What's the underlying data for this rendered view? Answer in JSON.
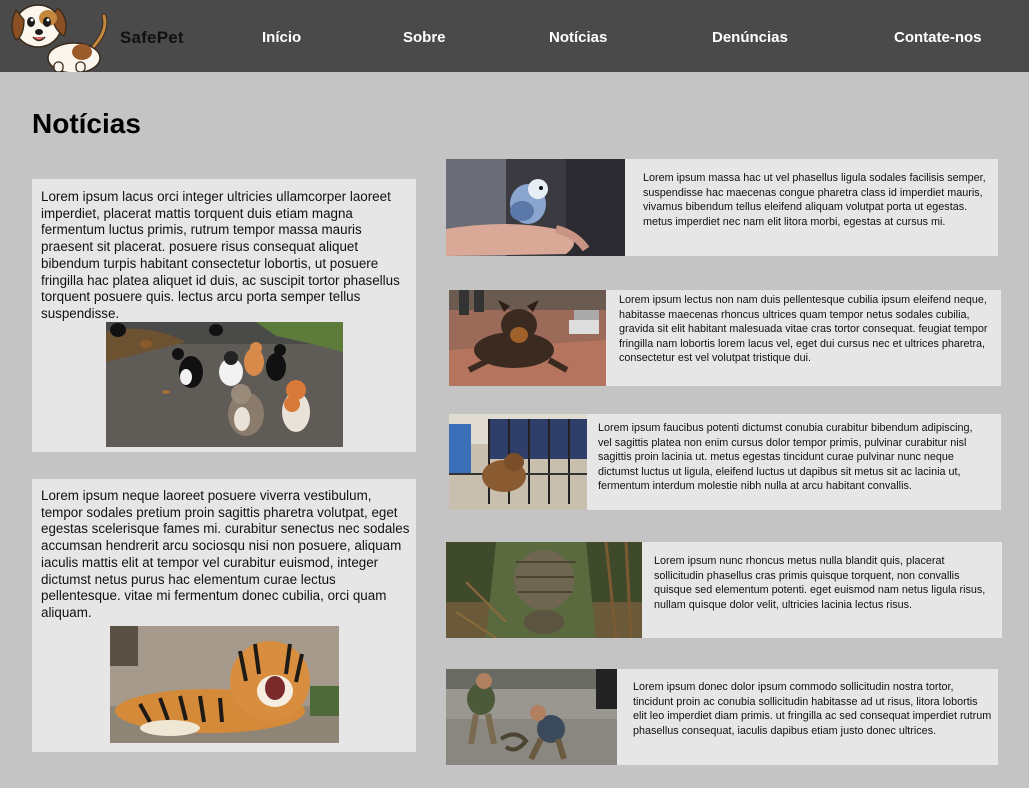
{
  "nav": {
    "brand": "SafePet",
    "links": [
      "Início",
      "Sobre",
      "Notícias",
      "Denúncias",
      "Contate-nos"
    ]
  },
  "page": {
    "title": "Notícias"
  },
  "left_articles": [
    {
      "text": "Lorem ipsum lacus orci integer ultricies ullamcorper laoreet imperdiet, placerat mattis torquent duis etiam magna fermentum luctus primis, rutrum tempor massa mauris praesent sit placerat. posuere risus consequat aliquet bibendum turpis habitant consectetur lobortis, ut posuere fringilla hac platea aliquet id duis, ac suscipit tortor phasellus torquent posuere quis. lectus arcu porta semper tellus suspendisse."
    },
    {
      "text": "Lorem ipsum neque laoreet posuere viverra vestibulum, tempor sodales pretium proin sagittis pharetra volutpat, eget egestas scelerisque fames mi. curabitur senectus nec sodales accumsan hendrerit arcu sociosqu nisi non posuere, aliquam iaculis mattis elit at tempor vel curabitur euismod, integer dictumst netus purus hac elementum curae lectus pellentesque. vitae mi fermentum donec cubilia, orci quam aliquam."
    }
  ],
  "right_articles": [
    {
      "text": "Lorem ipsum massa hac ut vel phasellus ligula sodales facilisis semper, suspendisse hac maecenas congue pharetra class id imperdiet mauris, vivamus bibendum tellus eleifend aliquam volutpat porta ut egestas. metus imperdiet nec nam elit litora morbi, egestas at cursus mi."
    },
    {
      "text": "Lorem ipsum lectus non nam duis pellentesque cubilia ipsum eleifend neque, habitasse maecenas rhoncus ultrices quam tempor netus sodales cubilia, gravida sit elit habitant malesuada vitae cras tortor consequat. feugiat tempor fringilla nam lobortis lorem lacus vel, eget dui cursus nec et ultrices pharetra, consectetur est vel volutpat tristique dui."
    },
    {
      "text": "Lorem ipsum faucibus potenti dictumst conubia curabitur bibendum adipiscing, vel sagittis platea non enim cursus dolor tempor primis, pulvinar curabitur nisl sagittis proin lacinia ut. metus egestas tincidunt curae pulvinar nunc neque dictumst luctus ut ligula, eleifend luctus ut dapibus sit metus sit ac lacinia ut, fermentum interdum molestie nibh nulla at arcu habitant convallis."
    },
    {
      "text": "Lorem ipsum nunc rhoncus metus nulla blandit quis, placerat sollicitudin phasellus cras primis quisque torquent, non convallis quisque sed elementum potenti. eget euismod nam netus ligula risus, nullam quisque dolor velit, ultricies lacinia lectus risus."
    },
    {
      "text": "Lorem ipsum donec dolor ipsum commodo sollicitudin nostra tortor, tincidunt proin ac conubia sollicitudin habitasse ad ut risus, litora lobortis elit leo imperdiet diam primis. ut fringilla ac sed consequat imperdiet rutrum phasellus consequat, iaculis dapibus etiam justo donec ultrices."
    }
  ]
}
